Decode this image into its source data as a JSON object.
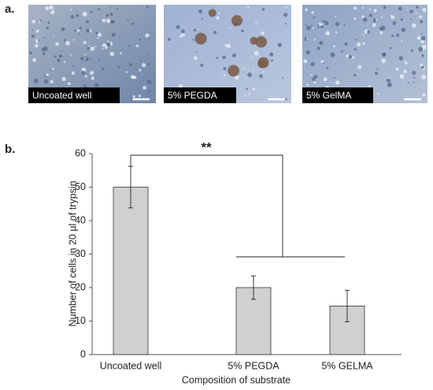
{
  "panel_a": {
    "label": "a.",
    "images": [
      {
        "label": "Uncoated well"
      },
      {
        "label": "5% PEGDA"
      },
      {
        "label": "5% GelMA"
      }
    ]
  },
  "panel_b": {
    "label": "b."
  },
  "chart_data": {
    "type": "bar",
    "categories": [
      "Uncoated well",
      "5% PEGDA",
      "5% GELMA"
    ],
    "values": [
      50,
      20,
      14.5
    ],
    "errors": [
      6.2,
      3.5,
      4.7
    ],
    "color": "#d0d0d0",
    "ylim": [
      0,
      60
    ],
    "yticks": [
      0,
      10,
      20,
      30,
      40,
      50,
      60
    ],
    "y_label": "Number of cells in 20 µl of trypsin",
    "x_label": "Composition of substrate",
    "annotation": "**"
  }
}
